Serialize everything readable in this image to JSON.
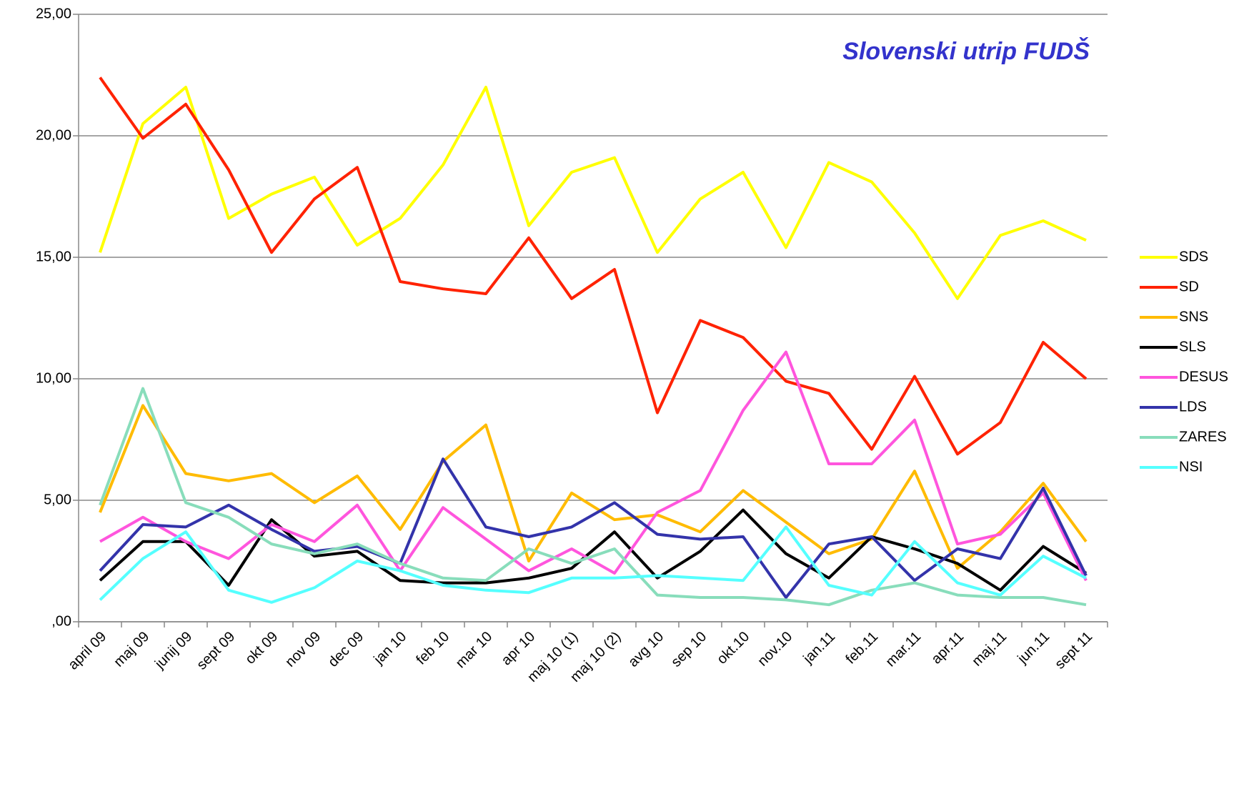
{
  "chart_data": {
    "type": "line",
    "title": "Slovenski utrip FUDŠ",
    "categories": [
      "april 09",
      "maj 09",
      "junij 09",
      "sept 09",
      "okt 09",
      "nov 09",
      "dec 09",
      "jan 10",
      "feb 10",
      "mar 10",
      "apr 10",
      "maj 10 (1)",
      "maj 10 (2)",
      "avg 10",
      "sep 10",
      "okt.10",
      "nov.10",
      "jan.11",
      "feb.11",
      "mar.11",
      "apr.11",
      "maj.11",
      "jun.11",
      "sept 11"
    ],
    "series": [
      {
        "name": "SDS",
        "color": "#ffff00",
        "values": [
          15.2,
          20.5,
          22.0,
          16.6,
          17.6,
          18.3,
          15.5,
          16.6,
          18.8,
          22.0,
          16.3,
          18.5,
          19.1,
          15.2,
          17.4,
          18.5,
          15.4,
          18.9,
          18.1,
          16.0,
          13.3,
          15.9,
          16.5,
          15.7
        ]
      },
      {
        "name": "SD",
        "color": "#ff2200",
        "values": [
          22.4,
          19.9,
          21.3,
          18.6,
          15.2,
          17.4,
          18.7,
          14.0,
          13.7,
          13.5,
          15.8,
          13.3,
          14.5,
          8.6,
          12.4,
          11.7,
          9.9,
          9.4,
          7.1,
          10.1,
          6.9,
          8.2,
          11.5,
          10.0
        ]
      },
      {
        "name": "SNS",
        "color": "#ffbb00",
        "values": [
          4.5,
          8.9,
          6.1,
          5.8,
          6.1,
          4.9,
          6.0,
          3.8,
          6.6,
          8.1,
          2.5,
          5.3,
          4.2,
          4.4,
          3.7,
          5.4,
          4.1,
          2.8,
          3.4,
          6.2,
          2.2,
          3.7,
          5.7,
          3.3
        ]
      },
      {
        "name": "SLS",
        "color": "#000000",
        "values": [
          1.7,
          3.3,
          3.3,
          1.5,
          4.2,
          2.7,
          2.9,
          1.7,
          1.6,
          1.6,
          1.8,
          2.2,
          3.7,
          1.8,
          2.9,
          4.6,
          2.8,
          1.8,
          3.5,
          3.0,
          2.4,
          1.3,
          3.1,
          2.0
        ]
      },
      {
        "name": "DESUS",
        "color": "#ff55dd",
        "values": [
          3.3,
          4.3,
          3.3,
          2.6,
          4.0,
          3.3,
          4.8,
          2.1,
          4.7,
          3.4,
          2.1,
          3.0,
          2.0,
          4.5,
          5.4,
          8.7,
          11.1,
          6.5,
          6.5,
          8.3,
          3.2,
          3.6,
          5.3,
          1.7
        ]
      },
      {
        "name": "LDS",
        "color": "#3333aa",
        "values": [
          2.1,
          4.0,
          3.9,
          4.8,
          3.8,
          2.9,
          3.1,
          2.4,
          6.7,
          3.9,
          3.5,
          3.9,
          4.9,
          3.6,
          3.4,
          3.5,
          1.0,
          3.2,
          3.5,
          1.7,
          3.0,
          2.6,
          5.5,
          1.9
        ]
      },
      {
        "name": "ZARES",
        "color": "#88ddbb",
        "values": [
          4.8,
          9.6,
          4.9,
          4.3,
          3.2,
          2.8,
          3.2,
          2.4,
          1.8,
          1.7,
          3.0,
          2.4,
          3.0,
          1.1,
          1.0,
          1.0,
          0.9,
          0.7,
          1.3,
          1.6,
          1.1,
          1.0,
          1.0,
          0.7
        ]
      },
      {
        "name": "NSI",
        "color": "#55ffff",
        "values": [
          0.9,
          2.6,
          3.7,
          1.3,
          0.8,
          1.4,
          2.5,
          2.1,
          1.5,
          1.3,
          1.2,
          1.8,
          1.8,
          1.9,
          1.8,
          1.7,
          3.9,
          1.5,
          1.1,
          3.3,
          1.6,
          1.1,
          2.7,
          1.8
        ]
      }
    ],
    "ylim": [
      0,
      25
    ],
    "yticks": [
      {
        "value": 0,
        "label": ",00"
      },
      {
        "value": 5,
        "label": "5,00"
      },
      {
        "value": 10,
        "label": "10,00"
      },
      {
        "value": 15,
        "label": "15,00"
      },
      {
        "value": 20,
        "label": "20,00"
      },
      {
        "value": 25,
        "label": "25,00"
      }
    ],
    "grid": true
  }
}
